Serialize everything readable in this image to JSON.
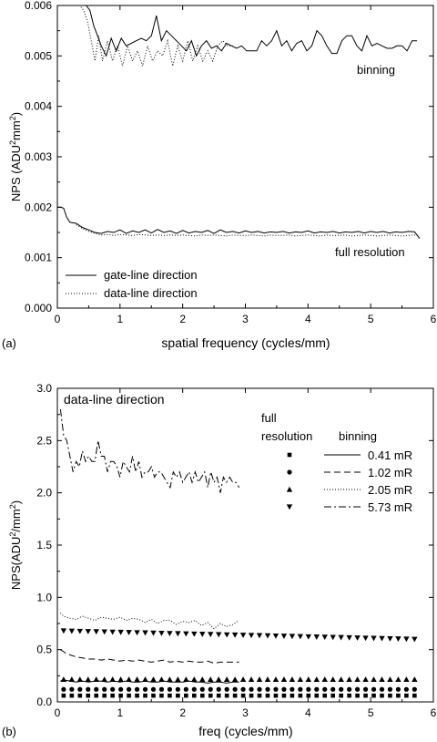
{
  "chart_data": [
    {
      "panel_label": "(a)",
      "type": "line",
      "xlabel": "spatial frequency (cycles/mm)",
      "ylabel_main": "NPS (ADU",
      "ylabel_sup1": "2",
      "ylabel_mid": "mm",
      "ylabel_sup2": "2",
      "ylabel_end": ")",
      "xlim": [
        0,
        6
      ],
      "ylim": [
        0,
        0.006
      ],
      "xticks": [
        "0",
        "1",
        "2",
        "3",
        "4",
        "5",
        "6"
      ],
      "yticks": [
        "0.000",
        "0.001",
        "0.002",
        "0.003",
        "0.004",
        "0.005",
        "0.006"
      ],
      "annotations": [
        "binning",
        "full resolution"
      ],
      "legend": [
        "gate-line direction",
        "data-line direction"
      ],
      "series": [
        {
          "name": "gate-line direction",
          "group": "binning",
          "style": "solid",
          "x": [
            0.34,
            0.4,
            0.46,
            0.52,
            0.58,
            0.64,
            0.7,
            0.78,
            0.86,
            0.94,
            1.02,
            1.1,
            1.18,
            1.26,
            1.34,
            1.42,
            1.5,
            1.58,
            1.66,
            1.74,
            1.82,
            1.9,
            1.98,
            2.06,
            2.14,
            2.22,
            2.3,
            2.38,
            2.46,
            2.54,
            2.62,
            2.7,
            2.78,
            2.86,
            2.94,
            3.02,
            3.1,
            3.18,
            3.26,
            3.34,
            3.42,
            3.5,
            3.58,
            3.66,
            3.74,
            3.82,
            3.9,
            3.98,
            4.06,
            4.14,
            4.22,
            4.3,
            4.38,
            4.46,
            4.54,
            4.62,
            4.7,
            4.78,
            4.86,
            4.94,
            5.02,
            5.1,
            5.18,
            5.26,
            5.34,
            5.42,
            5.5,
            5.58,
            5.66,
            5.74
          ],
          "y": [
            0.006,
            0.006,
            0.006,
            0.0059,
            0.0056,
            0.0054,
            0.0052,
            0.005,
            0.00535,
            0.0051,
            0.00535,
            0.0052,
            0.00525,
            0.0053,
            0.00535,
            0.0053,
            0.0054,
            0.0058,
            0.0053,
            0.0055,
            0.0054,
            0.0053,
            0.0052,
            0.0051,
            0.0053,
            0.005,
            0.0052,
            0.0053,
            0.00515,
            0.0052,
            0.0051,
            0.00525,
            0.0052,
            0.00515,
            0.0052,
            0.0051,
            0.0051,
            0.0051,
            0.0053,
            0.0052,
            0.0053,
            0.0055,
            0.0052,
            0.0053,
            0.0051,
            0.00525,
            0.0053,
            0.0051,
            0.0052,
            0.0055,
            0.0054,
            0.0052,
            0.00505,
            0.00505,
            0.0053,
            0.0054,
            0.0054,
            0.0052,
            0.0051,
            0.0054,
            0.0052,
            0.00525,
            0.0052,
            0.00515,
            0.00515,
            0.0052,
            0.0052,
            0.0051,
            0.0053,
            0.0053
          ]
        },
        {
          "name": "data-line direction",
          "group": "binning",
          "style": "dotted",
          "x": [
            0.3,
            0.36,
            0.42,
            0.48,
            0.54,
            0.6,
            0.66,
            0.72,
            0.8,
            0.88,
            0.96,
            1.04,
            1.12,
            1.2,
            1.28,
            1.36,
            1.44,
            1.52,
            1.6,
            1.68,
            1.76,
            1.84,
            1.92,
            2.0,
            2.08,
            2.16,
            2.24,
            2.32,
            2.4,
            2.48,
            2.56,
            2.64,
            2.72,
            2.8
          ],
          "y": [
            0.006,
            0.006,
            0.0059,
            0.0057,
            0.0053,
            0.0049,
            0.0054,
            0.0049,
            0.0053,
            0.0049,
            0.0052,
            0.0048,
            0.0052,
            0.0049,
            0.0051,
            0.0048,
            0.0052,
            0.0049,
            0.0051,
            0.005,
            0.0053,
            0.0048,
            0.0052,
            0.0049,
            0.0053,
            0.0049,
            0.0052,
            0.0049,
            0.0051,
            0.0049,
            0.0052,
            0.0053,
            0.0052,
            0.0052
          ]
        },
        {
          "name": "gate-line direction",
          "group": "full resolution",
          "style": "solid",
          "x": [
            0.0,
            0.05,
            0.1,
            0.15,
            0.2,
            0.3,
            0.4,
            0.5,
            0.6,
            0.7,
            0.8,
            0.9,
            1.0,
            1.1,
            1.2,
            1.3,
            1.4,
            1.5,
            1.6,
            1.7,
            1.8,
            1.9,
            2.0,
            2.1,
            2.2,
            2.3,
            2.4,
            2.5,
            2.6,
            2.7,
            2.8,
            2.9,
            3.0,
            3.1,
            3.2,
            3.3,
            3.4,
            3.5,
            3.6,
            3.7,
            3.8,
            3.9,
            4.0,
            4.1,
            4.2,
            4.3,
            4.4,
            4.5,
            4.6,
            4.7,
            4.8,
            4.9,
            5.0,
            5.1,
            5.2,
            5.3,
            5.4,
            5.5,
            5.6,
            5.7,
            5.78
          ],
          "y": [
            0.002,
            0.002,
            0.00198,
            0.0018,
            0.0017,
            0.00168,
            0.0016,
            0.00155,
            0.0015,
            0.00148,
            0.00152,
            0.0015,
            0.00155,
            0.00148,
            0.00153,
            0.0015,
            0.00155,
            0.00149,
            0.00156,
            0.0015,
            0.00153,
            0.00148,
            0.00154,
            0.00149,
            0.00152,
            0.0015,
            0.00154,
            0.00148,
            0.00155,
            0.0015,
            0.00152,
            0.00149,
            0.00153,
            0.0015,
            0.00152,
            0.00149,
            0.00151,
            0.0015,
            0.00152,
            0.00149,
            0.00151,
            0.0015,
            0.00153,
            0.00149,
            0.00151,
            0.0015,
            0.00152,
            0.00149,
            0.00151,
            0.0015,
            0.00152,
            0.00149,
            0.00152,
            0.0015,
            0.00152,
            0.00149,
            0.00151,
            0.0015,
            0.00152,
            0.00151,
            0.00138
          ]
        },
        {
          "name": "data-line direction",
          "group": "full resolution",
          "style": "dotted",
          "x": [
            0.3,
            0.4,
            0.5,
            0.6,
            0.7,
            0.8,
            0.9,
            1.0,
            1.1,
            1.2,
            1.3,
            1.4,
            1.5,
            1.6,
            1.7,
            1.8,
            1.9,
            2.0,
            2.1,
            2.2,
            2.3,
            2.4,
            2.5,
            2.6,
            2.7,
            2.8,
            2.9,
            3.0,
            3.1,
            3.2,
            3.3,
            3.4,
            3.5,
            3.6,
            3.7,
            3.8,
            3.9,
            4.0,
            4.1,
            4.2,
            4.3,
            4.4,
            4.5,
            4.6,
            4.7,
            4.8,
            4.9,
            5.0,
            5.1,
            5.2,
            5.3,
            5.4,
            5.5,
            5.6,
            5.7,
            5.78
          ],
          "y": [
            0.00165,
            0.00158,
            0.00152,
            0.00148,
            0.00145,
            0.00146,
            0.00144,
            0.00146,
            0.00145,
            0.00144,
            0.00146,
            0.00145,
            0.00144,
            0.00145,
            0.00144,
            0.00145,
            0.00144,
            0.00145,
            0.00144,
            0.00143,
            0.00145,
            0.00144,
            0.00145,
            0.00144,
            0.00143,
            0.00145,
            0.00144,
            0.00144,
            0.00145,
            0.00144,
            0.00143,
            0.00145,
            0.00144,
            0.00144,
            0.00145,
            0.00143,
            0.00144,
            0.00145,
            0.00144,
            0.00143,
            0.00145,
            0.00144,
            0.00144,
            0.00145,
            0.00143,
            0.00144,
            0.00145,
            0.00144,
            0.00143,
            0.00144,
            0.00145,
            0.00144,
            0.00143,
            0.00144,
            0.00145,
            0.00144
          ]
        }
      ]
    },
    {
      "panel_label": "(b)",
      "type": "line",
      "xlabel": "freq (cycles/mm)",
      "ylabel_main": "NPS(ADU",
      "ylabel_sup1": "2",
      "ylabel_mid": "/mm",
      "ylabel_sup2": "2",
      "ylabel_end": ")",
      "xlim": [
        0,
        6
      ],
      "ylim": [
        0,
        3.0
      ],
      "xticks": [
        "0",
        "1",
        "2",
        "3",
        "4",
        "5",
        "6"
      ],
      "yticks": [
        "0.0",
        "0.5",
        "1.0",
        "1.5",
        "2.0",
        "2.5",
        "3.0"
      ],
      "annotation": "data-line direction",
      "legend_header_left": "full",
      "legend_header_left2": "resolution",
      "legend_header_right": "binning",
      "legend": [
        "0.41 mR",
        "1.02 mR",
        "2.05 mR",
        "5.73 mR"
      ],
      "line_series": [
        {
          "name": "0.41 mR",
          "style": "solid",
          "x": [
            0.05,
            0.1,
            0.2,
            0.3,
            0.4,
            0.5,
            0.6,
            0.7,
            0.8,
            0.9,
            1.0,
            1.1,
            1.2,
            1.3,
            1.4,
            1.5,
            1.6,
            1.7,
            1.8,
            1.9,
            2.0,
            2.1,
            2.2,
            2.3,
            2.4,
            2.5,
            2.6,
            2.7,
            2.8,
            2.9
          ],
          "y": [
            0.2,
            0.21,
            0.2,
            0.19,
            0.2,
            0.19,
            0.2,
            0.2,
            0.19,
            0.2,
            0.19,
            0.2,
            0.19,
            0.19,
            0.2,
            0.19,
            0.19,
            0.2,
            0.19,
            0.19,
            0.19,
            0.2,
            0.19,
            0.19,
            0.18,
            0.19,
            0.19,
            0.18,
            0.19,
            0.19
          ]
        },
        {
          "name": "1.02 mR",
          "style": "dashed",
          "x": [
            0.05,
            0.1,
            0.15,
            0.2,
            0.3,
            0.4,
            0.5,
            0.6,
            0.7,
            0.8,
            0.9,
            1.0,
            1.1,
            1.2,
            1.3,
            1.4,
            1.5,
            1.6,
            1.7,
            1.8,
            1.9,
            2.0,
            2.1,
            2.2,
            2.3,
            2.4,
            2.5,
            2.6,
            2.7,
            2.8,
            2.9
          ],
          "y": [
            0.5,
            0.48,
            0.46,
            0.45,
            0.43,
            0.42,
            0.41,
            0.41,
            0.4,
            0.41,
            0.4,
            0.39,
            0.4,
            0.39,
            0.4,
            0.39,
            0.38,
            0.39,
            0.4,
            0.38,
            0.39,
            0.38,
            0.39,
            0.38,
            0.38,
            0.39,
            0.37,
            0.38,
            0.38,
            0.38,
            0.38
          ]
        },
        {
          "name": "2.05 mR",
          "style": "dotted",
          "x": [
            0.05,
            0.1,
            0.2,
            0.3,
            0.4,
            0.5,
            0.6,
            0.7,
            0.8,
            0.9,
            1.0,
            1.1,
            1.2,
            1.3,
            1.4,
            1.5,
            1.6,
            1.7,
            1.8,
            1.9,
            2.0,
            2.1,
            2.2,
            2.3,
            2.4,
            2.5,
            2.6,
            2.7,
            2.8,
            2.9
          ],
          "y": [
            0.85,
            0.82,
            0.8,
            0.79,
            0.82,
            0.8,
            0.78,
            0.81,
            0.8,
            0.79,
            0.81,
            0.78,
            0.8,
            0.79,
            0.76,
            0.79,
            0.75,
            0.78,
            0.78,
            0.74,
            0.77,
            0.76,
            0.78,
            0.73,
            0.76,
            0.7,
            0.75,
            0.72,
            0.74,
            0.78
          ]
        },
        {
          "name": "5.73 mR",
          "style": "dashdot",
          "x": [
            0.05,
            0.1,
            0.15,
            0.2,
            0.25,
            0.3,
            0.35,
            0.4,
            0.45,
            0.5,
            0.55,
            0.6,
            0.65,
            0.7,
            0.75,
            0.8,
            0.85,
            0.9,
            0.95,
            1.0,
            1.05,
            1.1,
            1.15,
            1.2,
            1.25,
            1.3,
            1.35,
            1.4,
            1.45,
            1.5,
            1.55,
            1.6,
            1.65,
            1.7,
            1.75,
            1.8,
            1.85,
            1.9,
            1.95,
            2.0,
            2.05,
            2.1,
            2.15,
            2.2,
            2.25,
            2.3,
            2.35,
            2.4,
            2.45,
            2.5,
            2.55,
            2.6,
            2.65,
            2.7,
            2.75,
            2.8,
            2.85,
            2.9
          ],
          "y": [
            2.8,
            2.55,
            2.5,
            2.35,
            2.2,
            2.3,
            2.25,
            2.4,
            2.3,
            2.35,
            2.3,
            2.3,
            2.5,
            2.35,
            2.35,
            2.2,
            2.3,
            2.3,
            2.25,
            2.15,
            2.3,
            2.25,
            2.2,
            2.35,
            2.2,
            2.3,
            2.15,
            2.2,
            2.2,
            2.25,
            2.15,
            2.2,
            2.2,
            2.15,
            2.1,
            2.05,
            2.2,
            2.15,
            2.2,
            2.1,
            2.15,
            2.2,
            2.1,
            2.2,
            2.1,
            2.15,
            2.2,
            2.05,
            2.2,
            2.1,
            2.15,
            2.0,
            2.15,
            2.1,
            2.15,
            2.1,
            2.1,
            2.05
          ]
        }
      ],
      "marker_series": [
        {
          "name": "0.41 mR",
          "marker": "square",
          "x_start": 0.1,
          "x_end": 5.7,
          "y": 0.06
        },
        {
          "name": "1.02 mR",
          "marker": "circle",
          "x_start": 0.1,
          "x_end": 5.7,
          "y": 0.12
        },
        {
          "name": "2.05 mR",
          "marker": "triangle-up",
          "x_start": 0.1,
          "x_end": 5.7,
          "y": 0.215
        },
        {
          "name": "5.73 mR",
          "marker": "triangle-down",
          "x_start": 0.1,
          "x_end": 5.7,
          "y_start": 0.68,
          "y_end": 0.6
        }
      ]
    }
  ]
}
